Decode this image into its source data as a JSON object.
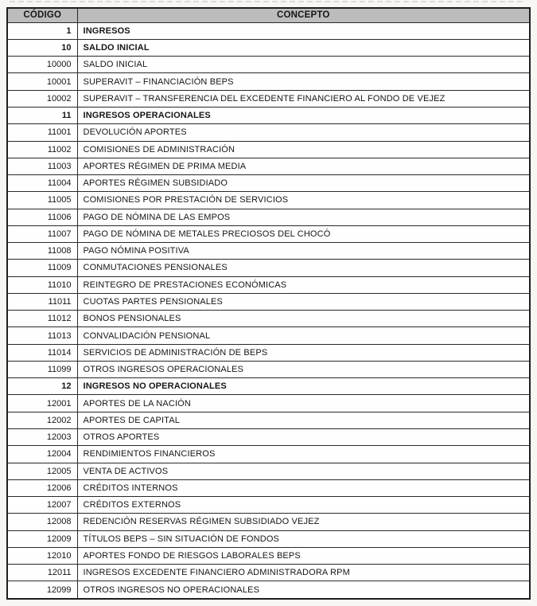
{
  "colors": {
    "header_bg": "#bcbcbc",
    "border": "#2a2a2a",
    "page_bg": "#f7f6f3",
    "text": "#161616"
  },
  "table": {
    "columns": [
      {
        "key": "codigo",
        "label": "CÓDIGO"
      },
      {
        "key": "concepto",
        "label": "CONCEPTO"
      }
    ],
    "rows": [
      {
        "codigo": "1",
        "concepto": "INGRESOS",
        "bold": true
      },
      {
        "codigo": "10",
        "concepto": "SALDO INICIAL",
        "bold": true
      },
      {
        "codigo": "10000",
        "concepto": "SALDO INICIAL",
        "bold": false
      },
      {
        "codigo": "10001",
        "concepto": "SUPERAVIT – FINANCIACIÓN BEPS",
        "bold": false
      },
      {
        "codigo": "10002",
        "concepto": "SUPERAVIT – TRANSFERENCIA DEL EXCEDENTE FINANCIERO AL FONDO DE VEJEZ",
        "bold": false
      },
      {
        "codigo": "11",
        "concepto": "INGRESOS OPERACIONALES",
        "bold": true
      },
      {
        "codigo": "11001",
        "concepto": "DEVOLUCIÓN APORTES",
        "bold": false
      },
      {
        "codigo": "11002",
        "concepto": "COMISIONES DE ADMINISTRACIÓN",
        "bold": false
      },
      {
        "codigo": "11003",
        "concepto": "APORTES RÉGIMEN DE PRIMA MEDIA",
        "bold": false
      },
      {
        "codigo": "11004",
        "concepto": "APORTES RÉGIMEN SUBSIDIADO",
        "bold": false
      },
      {
        "codigo": "11005",
        "concepto": "COMISIONES POR PRESTACIÓN DE SERVICIOS",
        "bold": false
      },
      {
        "codigo": "11006",
        "concepto": "PAGO DE NÓMINA DE LAS EMPOS",
        "bold": false
      },
      {
        "codigo": "11007",
        "concepto": "PAGO DE NÓMINA DE METALES PRECIOSOS DEL CHOCÓ",
        "bold": false
      },
      {
        "codigo": "11008",
        "concepto": "PAGO NÓMINA POSITIVA",
        "bold": false
      },
      {
        "codigo": "11009",
        "concepto": "CONMUTACIONES PENSIONALES",
        "bold": false
      },
      {
        "codigo": "11010",
        "concepto": "REINTEGRO DE PRESTACIONES ECONÓMICAS",
        "bold": false
      },
      {
        "codigo": "11011",
        "concepto": "CUOTAS PARTES PENSIONALES",
        "bold": false
      },
      {
        "codigo": "11012",
        "concepto": "BONOS PENSIONALES",
        "bold": false
      },
      {
        "codigo": "11013",
        "concepto": "CONVALIDACIÓN PENSIONAL",
        "bold": false
      },
      {
        "codigo": "11014",
        "concepto": "SERVICIOS DE ADMINISTRACIÓN DE BEPS",
        "bold": false
      },
      {
        "codigo": "11099",
        "concepto": "OTROS INGRESOS OPERACIONALES",
        "bold": false
      },
      {
        "codigo": "12",
        "concepto": "INGRESOS NO OPERACIONALES",
        "bold": true
      },
      {
        "codigo": "12001",
        "concepto": "APORTES DE LA NACIÓN",
        "bold": false
      },
      {
        "codigo": "12002",
        "concepto": "APORTES DE CAPITAL",
        "bold": false
      },
      {
        "codigo": "12003",
        "concepto": "OTROS APORTES",
        "bold": false
      },
      {
        "codigo": "12004",
        "concepto": "RENDIMIENTOS FINANCIEROS",
        "bold": false
      },
      {
        "codigo": "12005",
        "concepto": "VENTA DE ACTIVOS",
        "bold": false
      },
      {
        "codigo": "12006",
        "concepto": "CRÉDITOS INTERNOS",
        "bold": false
      },
      {
        "codigo": "12007",
        "concepto": "CRÉDITOS EXTERNOS",
        "bold": false
      },
      {
        "codigo": "12008",
        "concepto": "REDENCIÓN RESERVAS RÉGIMEN SUBSIDIADO VEJEZ",
        "bold": false
      },
      {
        "codigo": "12009",
        "concepto": "TÍTULOS BEPS – SIN SITUACIÓN DE FONDOS",
        "bold": false
      },
      {
        "codigo": "12010",
        "concepto": "APORTES FONDO DE RIESGOS LABORALES BEPS",
        "bold": false
      },
      {
        "codigo": "12011",
        "concepto": "INGRESOS EXCEDENTE FINANCIERO ADMINISTRADORA  RPM",
        "bold": false
      },
      {
        "codigo": "12099",
        "concepto": "OTROS INGRESOS NO OPERACIONALES",
        "bold": false
      }
    ]
  }
}
